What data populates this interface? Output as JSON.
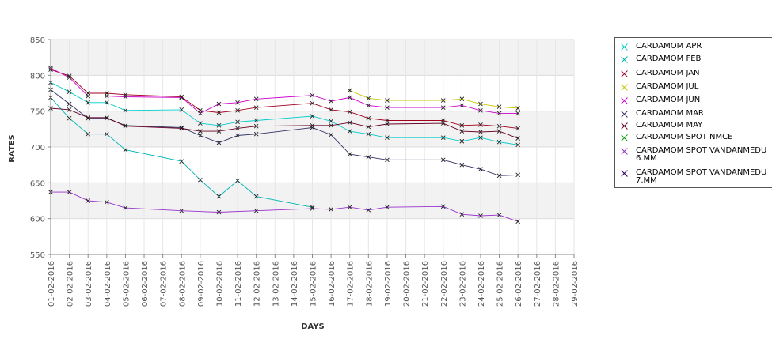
{
  "chart_data": {
    "type": "line",
    "xlabel": "DAYS",
    "ylabel": "RATES",
    "ylim": [
      550,
      850
    ],
    "yticks": [
      550,
      600,
      650,
      700,
      750,
      800,
      850
    ],
    "grid": true,
    "legend_position": "right",
    "x": [
      "01-02-2016",
      "02-02-2016",
      "03-02-2016",
      "04-02-2016",
      "05-02-2016",
      "06-02-2016",
      "07-02-2016",
      "08-02-2016",
      "09-02-2016",
      "10-02-2016",
      "11-02-2016",
      "12-02-2016",
      "13-02-2016",
      "14-02-2016",
      "15-02-2016",
      "16-02-2016",
      "17-02-2016",
      "18-02-2016",
      "19-02-2016",
      "20-02-2016",
      "21-02-2016",
      "22-02-2016",
      "23-02-2016",
      "24-02-2016",
      "25-02-2016",
      "26-02-2016",
      "27-02-2016",
      "28-02-2016",
      "29-02-2016"
    ],
    "series": [
      {
        "name": "CARDAMOM APR",
        "color": "#00cccc",
        "values": [
          790,
          777,
          762,
          762,
          751,
          null,
          null,
          752,
          733,
          730,
          735,
          737,
          null,
          null,
          743,
          736,
          722,
          718,
          713,
          null,
          null,
          713,
          708,
          713,
          707,
          703,
          null,
          null,
          null
        ]
      },
      {
        "name": "CARDAMOM FEB",
        "color": "#00b5b5",
        "values": [
          769,
          740,
          718,
          718,
          696,
          null,
          null,
          680,
          654,
          631,
          653,
          631,
          null,
          null,
          616,
          null,
          null,
          null,
          null,
          null,
          null,
          null,
          null,
          null,
          null,
          null,
          null,
          null,
          null
        ]
      },
      {
        "name": "CARDAMOM JAN",
        "color": "#a0001e",
        "values": [
          808,
          799,
          775,
          775,
          773,
          null,
          null,
          770,
          751,
          748,
          751,
          755,
          null,
          null,
          761,
          752,
          749,
          740,
          737,
          null,
          null,
          737,
          730,
          731,
          729,
          726,
          null,
          null,
          null
        ]
      },
      {
        "name": "CARDAMOM JUL",
        "color": "#c8c800",
        "values": [
          null,
          null,
          null,
          null,
          null,
          null,
          null,
          null,
          null,
          null,
          null,
          null,
          null,
          null,
          null,
          null,
          779,
          768,
          765,
          null,
          null,
          765,
          767,
          760,
          756,
          754,
          null,
          null,
          null
        ]
      },
      {
        "name": "CARDAMOM JUN",
        "color": "#cc00cc",
        "values": [
          810,
          797,
          771,
          771,
          770,
          null,
          null,
          769,
          747,
          760,
          762,
          767,
          null,
          null,
          772,
          764,
          769,
          758,
          755,
          null,
          null,
          755,
          758,
          751,
          747,
          747,
          null,
          null,
          null
        ]
      },
      {
        "name": "CARDAMOM MAR",
        "color": "#333366",
        "values": [
          780,
          760,
          740,
          740,
          730,
          null,
          null,
          727,
          716,
          706,
          716,
          718,
          null,
          null,
          727,
          717,
          690,
          686,
          682,
          null,
          null,
          682,
          675,
          669,
          660,
          661,
          null,
          null,
          null
        ]
      },
      {
        "name": "CARDAMOM MAY",
        "color": "#660022",
        "values": [
          754,
          752,
          741,
          741,
          729,
          null,
          null,
          726,
          722,
          722,
          726,
          729,
          null,
          null,
          730,
          730,
          734,
          728,
          732,
          null,
          null,
          733,
          722,
          721,
          722,
          712,
          null,
          null,
          null
        ]
      },
      {
        "name": "CARDAMOM SPOT NMCE",
        "color": "#00a000",
        "values": [
          null,
          null,
          null,
          null,
          null,
          null,
          null,
          null,
          null,
          null,
          null,
          null,
          null,
          null,
          null,
          null,
          null,
          null,
          null,
          null,
          null,
          null,
          null,
          null,
          null,
          null,
          null,
          null,
          null
        ]
      },
      {
        "name": "CARDAMOM SPOT VANDANMEDU\n6.MM",
        "color": "#9933cc",
        "values": [
          637,
          637,
          625,
          623,
          615,
          null,
          null,
          611,
          null,
          609,
          null,
          611,
          null,
          null,
          614,
          613,
          616,
          612,
          616,
          null,
          null,
          617,
          606,
          604,
          605,
          596,
          null,
          null,
          null
        ]
      },
      {
        "name": "CARDAMOM SPOT VANDANMEDU\n7.MM",
        "color": "#330066",
        "values": [
          null,
          null,
          null,
          null,
          null,
          null,
          null,
          null,
          null,
          null,
          null,
          null,
          null,
          null,
          null,
          null,
          null,
          null,
          null,
          null,
          null,
          null,
          null,
          null,
          null,
          null,
          null,
          null,
          null
        ]
      }
    ]
  }
}
